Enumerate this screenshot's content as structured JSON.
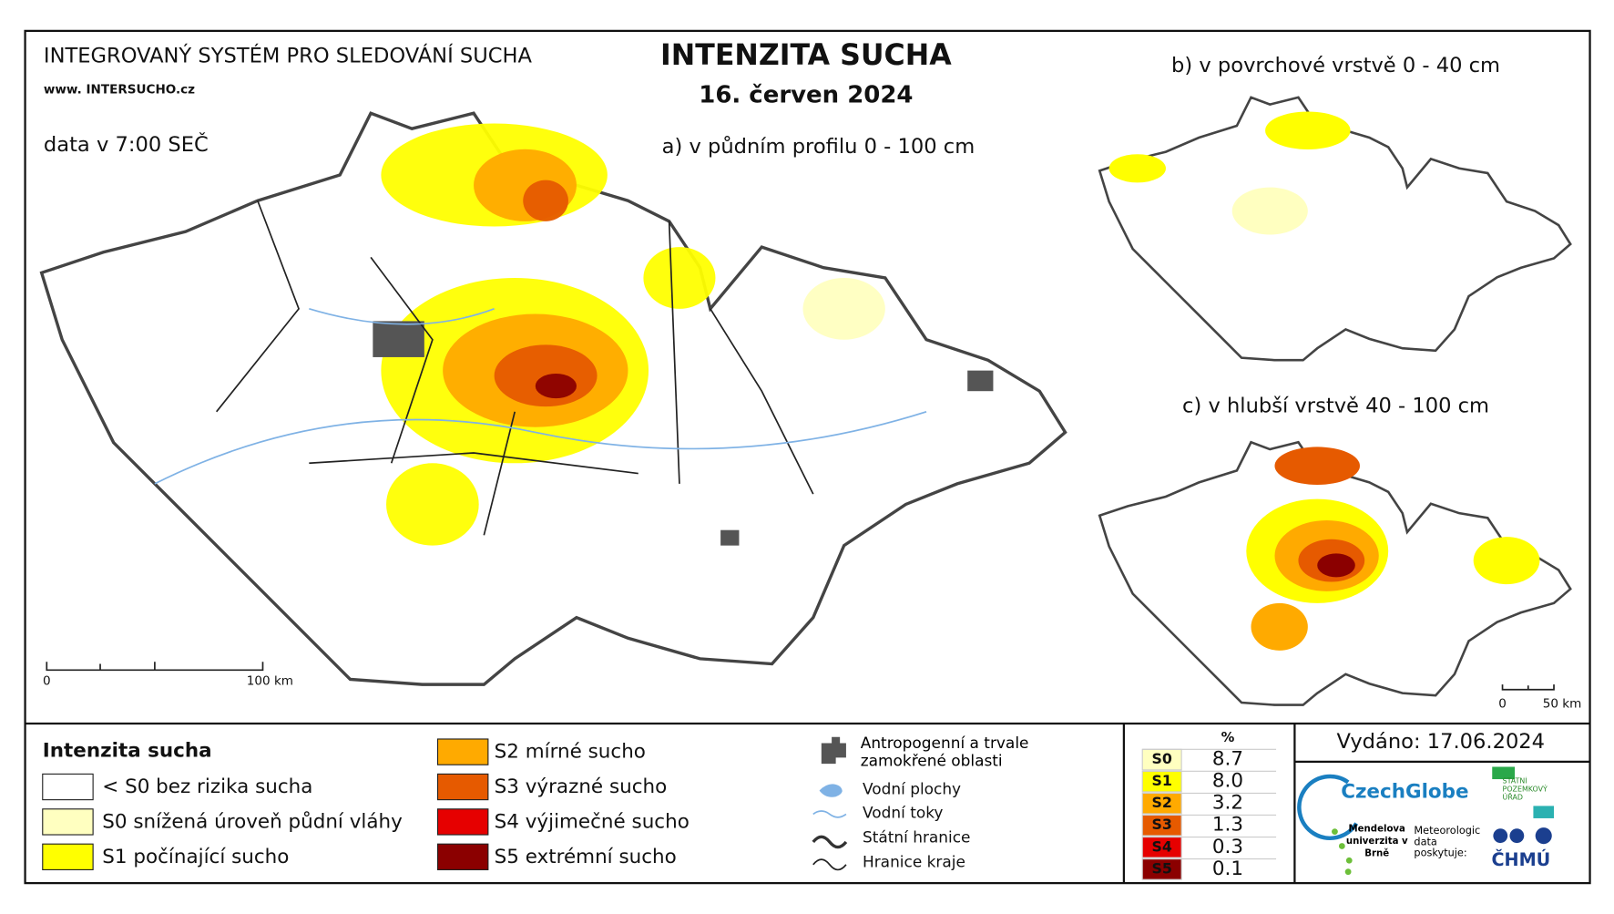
{
  "header": {
    "system": "INTEGROVANÝ SYSTÉM PRO SLEDOVÁNÍ SUCHA",
    "website": "www. INTERSUCHO.cz",
    "time": "data v 7:00 SEČ",
    "title": "INTENZITA SUCHA",
    "date": "16. červen 2024"
  },
  "maps": {
    "a": "a) v půdním profilu 0 - 100 cm",
    "b": "b) v povrchové vrstvě 0 - 40 cm",
    "c": "c) v hlubší vrstvě 40 - 100 cm"
  },
  "scale_bars": {
    "main": [
      "0",
      "100 km"
    ],
    "small": [
      "0",
      "50 km"
    ]
  },
  "legend": {
    "title": "Intenzita sucha",
    "classes": [
      {
        "label": "< S0 bez rizika sucha",
        "color": "#ffffff"
      },
      {
        "label": "S0 snížená úroveň půdní vláhy",
        "color": "#ffffc0"
      },
      {
        "label": "S1 počínající sucho",
        "color": "#ffff00"
      },
      {
        "label": "S2 mírné sucho",
        "color": "#ffaa00"
      },
      {
        "label": "S3 výrazné sucho",
        "color": "#e65a00"
      },
      {
        "label": "S4 výjimečné sucho",
        "color": "#e60000"
      },
      {
        "label": "S5 extrémní sucho",
        "color": "#8b0000"
      }
    ]
  },
  "symbols": [
    "Antropogenní a trvale zamokřené oblasti",
    "Vodní plochy",
    "Vodní toky",
    "Státní hranice",
    "Hranice kraje"
  ],
  "stats": {
    "header": "%",
    "rows": [
      {
        "class": "S0",
        "color": "#ffffc0",
        "percent": "8.7"
      },
      {
        "class": "S1",
        "color": "#ffff00",
        "percent": "8.0"
      },
      {
        "class": "S2",
        "color": "#ffaa00",
        "percent": "3.2"
      },
      {
        "class": "S3",
        "color": "#e65a00",
        "percent": "1.3"
      },
      {
        "class": "S4",
        "color": "#e60000",
        "percent": "0.3"
      },
      {
        "class": "S5",
        "color": "#8b0000",
        "percent": "0.1"
      }
    ]
  },
  "issued": "Vydáno: 17.06.2024",
  "logos": {
    "czechglobe": "CzechGlobe",
    "spu": "STÁTNÍ POZEMKOVÝ ÚŘAD",
    "mendelu": "Mendelova univerzita v Brně",
    "chmi_note": "Meteorologická data poskytuje:",
    "chmi": "ČHMÚ"
  }
}
